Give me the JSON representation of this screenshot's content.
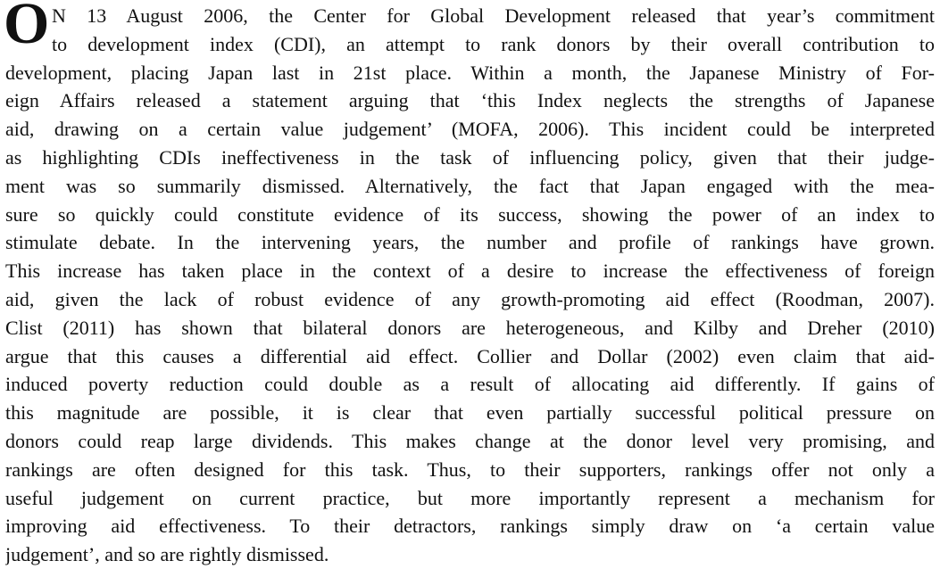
{
  "drop_cap": "O",
  "lines": [
    "N 13 August 2006, the Center for Global Development released that year’s commitment",
    "to development index (CDI), an attempt to rank donors by their overall contribution to",
    "development, placing Japan last in 21st place. Within a month, the Japanese Ministry of For-",
    "eign Affairs released a statement arguing that ‘this Index neglects the strengths of Japanese",
    "aid, drawing on a certain value judgement’ (MOFA, 2006). This incident could be interpreted",
    "as highlighting CDIs ineffectiveness in the task of influencing policy, given that their judge-",
    "ment was so summarily dismissed. Alternatively, the fact that Japan engaged with the mea-",
    "sure so quickly could constitute evidence of its success, showing the power of an index to",
    "stimulate debate. In the intervening years, the number and profile of rankings have grown.",
    "This increase has taken place in the context of a desire to increase the effectiveness of foreign",
    "aid, given the lack of robust evidence of any growth-promoting aid effect (Roodman, 2007).",
    "Clist (2011) has shown that bilateral donors are heterogeneous, and Kilby and Dreher (2010)",
    "argue that this causes a differential aid effect. Collier and Dollar (2002) even claim that aid-",
    "induced poverty reduction could double as a result of allocating aid differently. If gains of",
    "this magnitude are possible, it is clear that even partially successful political pressure on",
    "donors could reap large dividends. This makes change at the donor level very promising, and",
    "rankings are often designed for this task. Thus, to their supporters, rankings offer not only a",
    "useful judgement on current practice, but more importantly represent a mechanism for",
    "improving aid effectiveness. To their detractors, rankings simply draw on ‘a certain value",
    "judgement’, and so are rightly dismissed."
  ]
}
